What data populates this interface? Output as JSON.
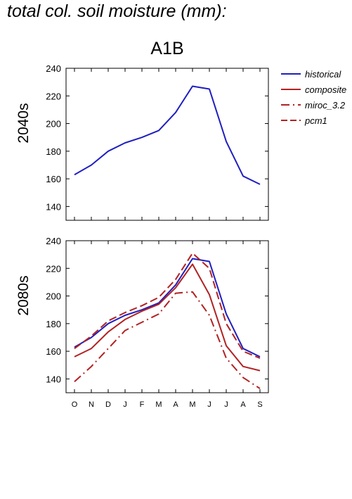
{
  "title": "total col. soil moisture (mm):",
  "scenario": "A1B",
  "colors": {
    "historical": "#1f1fbf",
    "composite": "#b22222",
    "miroc_3.2": "#b22222",
    "pcm1": "#b22222"
  },
  "chart_data": [
    {
      "type": "line",
      "panel_label": "2040s",
      "categories": [
        "O",
        "N",
        "D",
        "J",
        "F",
        "M",
        "A",
        "M",
        "J",
        "J",
        "A",
        "S"
      ],
      "ylim": [
        130,
        240
      ],
      "yticks": [
        140,
        160,
        180,
        200,
        220,
        240
      ],
      "grid": false,
      "legend_position": "right",
      "series": [
        {
          "name": "historical",
          "style": "solid",
          "color": "#1f1fbf",
          "values": [
            163,
            170,
            180,
            186,
            190,
            195,
            208,
            227,
            225,
            187,
            162,
            156
          ]
        }
      ]
    },
    {
      "type": "line",
      "panel_label": "2080s",
      "categories": [
        "O",
        "N",
        "D",
        "J",
        "F",
        "M",
        "A",
        "M",
        "J",
        "J",
        "A",
        "S"
      ],
      "ylim": [
        130,
        240
      ],
      "yticks": [
        140,
        160,
        180,
        200,
        220,
        240
      ],
      "grid": false,
      "series": [
        {
          "name": "historical",
          "style": "solid",
          "color": "#1f1fbf",
          "values": [
            163,
            170,
            180,
            186,
            190,
            195,
            208,
            227,
            225,
            187,
            162,
            156
          ]
        },
        {
          "name": "composite",
          "style": "solid",
          "color": "#b22222",
          "values": [
            156,
            162,
            174,
            183,
            189,
            194,
            206,
            223,
            201,
            164,
            149,
            146
          ]
        },
        {
          "name": "miroc_3.2",
          "style": "dashdot",
          "color": "#b22222",
          "values": [
            138,
            149,
            162,
            175,
            181,
            187,
            202,
            203,
            186,
            155,
            141,
            133
          ]
        },
        {
          "name": "pcm1",
          "style": "dashed",
          "color": "#b22222",
          "values": [
            162,
            171,
            182,
            188,
            193,
            199,
            212,
            231,
            220,
            180,
            160,
            155
          ]
        }
      ]
    }
  ],
  "legend": [
    {
      "name": "historical",
      "style": "solid",
      "color": "#1f1fbf"
    },
    {
      "name": "composite",
      "style": "solid",
      "color": "#b22222"
    },
    {
      "name": "miroc_3.2",
      "style": "dashdot",
      "color": "#b22222"
    },
    {
      "name": "pcm1",
      "style": "dashed",
      "color": "#b22222"
    }
  ]
}
